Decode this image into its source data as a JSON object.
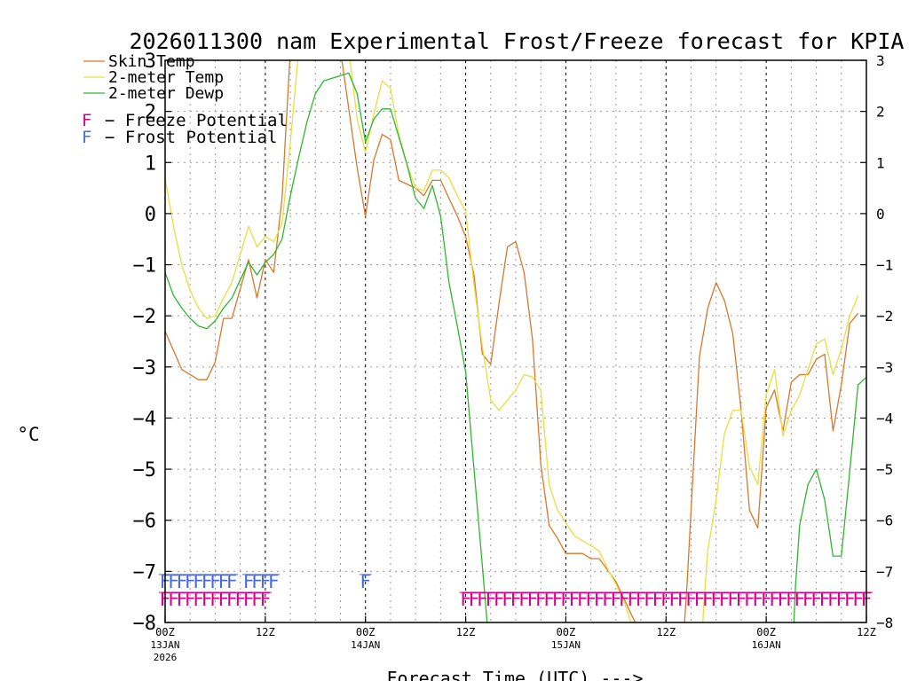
{
  "chart_data": {
    "type": "line",
    "title": "2026011300 nam Experimental Frost/Freeze forecast for KPIA",
    "ylabel": "°C",
    "xlabel": "Forecast Time (UTC) --->",
    "ylim": [
      -8,
      3
    ],
    "xlim": [
      0,
      84
    ],
    "grid": true,
    "y_ticks": [
      3,
      2,
      1,
      0,
      -1,
      -2,
      -3,
      -4,
      -5,
      -6,
      -7,
      -8
    ],
    "y_tick_labels": [
      "3",
      "2",
      "1",
      "0",
      "−1",
      "−2",
      "−3",
      "−4",
      "−5",
      "−6",
      "−7",
      "−8"
    ],
    "x_ticks": [
      {
        "hour": 0,
        "label": "00Z",
        "date": "13JAN",
        "year": "2026"
      },
      {
        "hour": 12,
        "label": "12Z",
        "date": "",
        "year": ""
      },
      {
        "hour": 24,
        "label": "00Z",
        "date": "14JAN",
        "year": ""
      },
      {
        "hour": 36,
        "label": "12Z",
        "date": "",
        "year": ""
      },
      {
        "hour": 48,
        "label": "00Z",
        "date": "15JAN",
        "year": ""
      },
      {
        "hour": 60,
        "label": "12Z",
        "date": "",
        "year": ""
      },
      {
        "hour": 72,
        "label": "00Z",
        "date": "16JAN",
        "year": ""
      },
      {
        "hour": 84,
        "label": "12Z",
        "date": "",
        "year": ""
      }
    ],
    "series": [
      {
        "name": "Skin Temp",
        "color": "#d9772d",
        "points": [
          [
            0,
            -2.3
          ],
          [
            2,
            -3.05
          ],
          [
            4,
            -3.25
          ],
          [
            5,
            -3.25
          ],
          [
            6,
            -2.9
          ],
          [
            7,
            -2.05
          ],
          [
            8,
            -2.05
          ],
          [
            10,
            -0.9
          ],
          [
            11,
            -1.65
          ],
          [
            12,
            -0.9
          ],
          [
            13,
            -1.15
          ],
          [
            14,
            0.3
          ],
          [
            15,
            3.2
          ],
          [
            21,
            3.2
          ],
          [
            23,
            0.9
          ],
          [
            24,
            -0.05
          ],
          [
            25,
            1.05
          ],
          [
            26,
            1.55
          ],
          [
            27,
            1.45
          ],
          [
            28,
            0.65
          ],
          [
            30,
            0.5
          ],
          [
            31,
            0.35
          ],
          [
            32,
            0.65
          ],
          [
            33,
            0.65
          ],
          [
            34,
            0.3
          ],
          [
            35,
            -0.05
          ],
          [
            36,
            -0.45
          ],
          [
            37,
            -1.2
          ],
          [
            38,
            -2.75
          ],
          [
            39,
            -2.95
          ],
          [
            40,
            -1.75
          ],
          [
            41,
            -0.65
          ],
          [
            42,
            -0.55
          ],
          [
            43,
            -1.15
          ],
          [
            44,
            -2.45
          ],
          [
            45,
            -4.9
          ],
          [
            46,
            -6.1
          ],
          [
            47,
            -6.35
          ],
          [
            48,
            -6.65
          ],
          [
            50,
            -6.65
          ],
          [
            51,
            -6.75
          ],
          [
            52,
            -6.75
          ],
          [
            54,
            -7.2
          ],
          [
            56,
            -7.9
          ],
          [
            56.5,
            -8.05
          ],
          [
            62.2,
            -8.05
          ],
          [
            62.5,
            -7.3
          ],
          [
            64,
            -2.8
          ],
          [
            65,
            -1.85
          ],
          [
            66,
            -1.35
          ],
          [
            67,
            -1.7
          ],
          [
            68,
            -2.35
          ],
          [
            69,
            -3.85
          ],
          [
            70,
            -5.8
          ],
          [
            71,
            -6.15
          ],
          [
            72,
            -3.8
          ],
          [
            73,
            -3.45
          ],
          [
            74,
            -4.25
          ],
          [
            75,
            -3.3
          ],
          [
            76,
            -3.15
          ],
          [
            77,
            -3.15
          ],
          [
            78,
            -2.85
          ],
          [
            79,
            -2.75
          ],
          [
            80,
            -4.25
          ],
          [
            81,
            -3.35
          ],
          [
            82,
            -2.15
          ],
          [
            83,
            -1.95
          ]
        ]
      },
      {
        "name": "2-meter Temp",
        "color": "#e7df3f",
        "points": [
          [
            0,
            0.7
          ],
          [
            1,
            -0.25
          ],
          [
            2,
            -1.0
          ],
          [
            3,
            -1.5
          ],
          [
            4,
            -1.85
          ],
          [
            5,
            -2.05
          ],
          [
            6,
            -2.0
          ],
          [
            7,
            -1.65
          ],
          [
            8,
            -1.35
          ],
          [
            9,
            -0.8
          ],
          [
            10,
            -0.25
          ],
          [
            11,
            -0.65
          ],
          [
            12,
            -0.45
          ],
          [
            13,
            -0.55
          ],
          [
            14,
            -0.2
          ],
          [
            15,
            1.4
          ],
          [
            16,
            3.2
          ],
          [
            22,
            3.2
          ],
          [
            23,
            1.85
          ],
          [
            24,
            1.2
          ],
          [
            25,
            1.95
          ],
          [
            26,
            2.6
          ],
          [
            27,
            2.45
          ],
          [
            28,
            1.55
          ],
          [
            29,
            0.95
          ],
          [
            30,
            0.5
          ],
          [
            31,
            0.45
          ],
          [
            32,
            0.85
          ],
          [
            33,
            0.85
          ],
          [
            34,
            0.7
          ],
          [
            35,
            0.35
          ],
          [
            36,
            0.05
          ],
          [
            37,
            -1.4
          ],
          [
            38,
            -2.6
          ],
          [
            39,
            -3.65
          ],
          [
            40,
            -3.85
          ],
          [
            41,
            -3.65
          ],
          [
            42,
            -3.45
          ],
          [
            43,
            -3.15
          ],
          [
            44,
            -3.2
          ],
          [
            45,
            -3.45
          ],
          [
            46,
            -5.3
          ],
          [
            47,
            -5.8
          ],
          [
            48,
            -6.05
          ],
          [
            49,
            -6.3
          ],
          [
            50,
            -6.4
          ],
          [
            51,
            -6.5
          ],
          [
            52,
            -6.6
          ],
          [
            53,
            -6.95
          ],
          [
            54,
            -7.25
          ],
          [
            55,
            -7.6
          ],
          [
            55.9,
            -8.05
          ],
          [
            64.4,
            -8.05
          ],
          [
            64.5,
            -7.7
          ],
          [
            65,
            -6.6
          ],
          [
            66,
            -5.6
          ],
          [
            67,
            -4.3
          ],
          [
            68,
            -3.85
          ],
          [
            69,
            -3.85
          ],
          [
            70,
            -4.95
          ],
          [
            71,
            -5.3
          ],
          [
            72,
            -3.55
          ],
          [
            73,
            -3.05
          ],
          [
            74,
            -4.35
          ],
          [
            75,
            -3.85
          ],
          [
            76,
            -3.55
          ],
          [
            77,
            -3.05
          ],
          [
            78,
            -2.55
          ],
          [
            79,
            -2.45
          ],
          [
            80,
            -3.15
          ],
          [
            81,
            -2.65
          ],
          [
            82,
            -2.0
          ],
          [
            83,
            -1.6
          ]
        ]
      },
      {
        "name": "2-meter Dewp",
        "color": "#2db82d",
        "points": [
          [
            0,
            -1.15
          ],
          [
            1,
            -1.6
          ],
          [
            2,
            -1.85
          ],
          [
            3,
            -2.05
          ],
          [
            4,
            -2.2
          ],
          [
            5,
            -2.25
          ],
          [
            6,
            -2.1
          ],
          [
            7,
            -1.85
          ],
          [
            8,
            -1.65
          ],
          [
            9,
            -1.3
          ],
          [
            10,
            -0.95
          ],
          [
            11,
            -1.2
          ],
          [
            12,
            -0.95
          ],
          [
            13,
            -0.8
          ],
          [
            14,
            -0.5
          ],
          [
            15,
            0.35
          ],
          [
            16,
            1.1
          ],
          [
            17,
            1.8
          ],
          [
            18,
            2.35
          ],
          [
            19,
            2.6
          ],
          [
            20,
            2.65
          ],
          [
            21,
            2.7
          ],
          [
            22,
            2.75
          ],
          [
            23,
            2.35
          ],
          [
            24,
            1.4
          ],
          [
            25,
            1.85
          ],
          [
            26,
            2.05
          ],
          [
            27,
            2.05
          ],
          [
            28,
            1.5
          ],
          [
            29,
            0.95
          ],
          [
            30,
            0.3
          ],
          [
            31,
            0.1
          ],
          [
            32,
            0.55
          ],
          [
            33,
            -0.05
          ],
          [
            34,
            -1.35
          ],
          [
            35,
            -2.2
          ],
          [
            36,
            -3.1
          ],
          [
            37,
            -5.0
          ],
          [
            38,
            -6.9
          ],
          [
            38.6,
            -8.05
          ],
          [
            75.3,
            -8.05
          ],
          [
            75.5,
            -7.3
          ],
          [
            76,
            -6.1
          ],
          [
            77,
            -5.3
          ],
          [
            78,
            -5.0
          ],
          [
            79,
            -5.6
          ],
          [
            80,
            -6.7
          ],
          [
            81,
            -6.7
          ],
          [
            82,
            -5.05
          ],
          [
            83,
            -3.35
          ],
          [
            84,
            -3.2
          ]
        ]
      }
    ],
    "legend": {
      "placement": "top-left",
      "entries": [
        "Skin Temp",
        "2-meter Temp",
        "2-meter Dewp"
      ],
      "markers": [
        {
          "letter": "F",
          "text": "− Freeze Potential",
          "color": "#d6008a"
        },
        {
          "letter": "F",
          "text": "− Frost Potential",
          "color": "#4a6ad8"
        }
      ]
    },
    "frost_potential": {
      "letter": "F",
      "color": "#4a6ad8",
      "y": -7.2,
      "ranges": [
        [
          0,
          8
        ],
        [
          10,
          13
        ],
        [
          24,
          24
        ]
      ]
    },
    "freeze_potential": {
      "letter": "F",
      "color": "#d6008a",
      "y": -7.55,
      "ranges": [
        [
          0,
          12
        ],
        [
          36,
          84
        ]
      ]
    }
  }
}
